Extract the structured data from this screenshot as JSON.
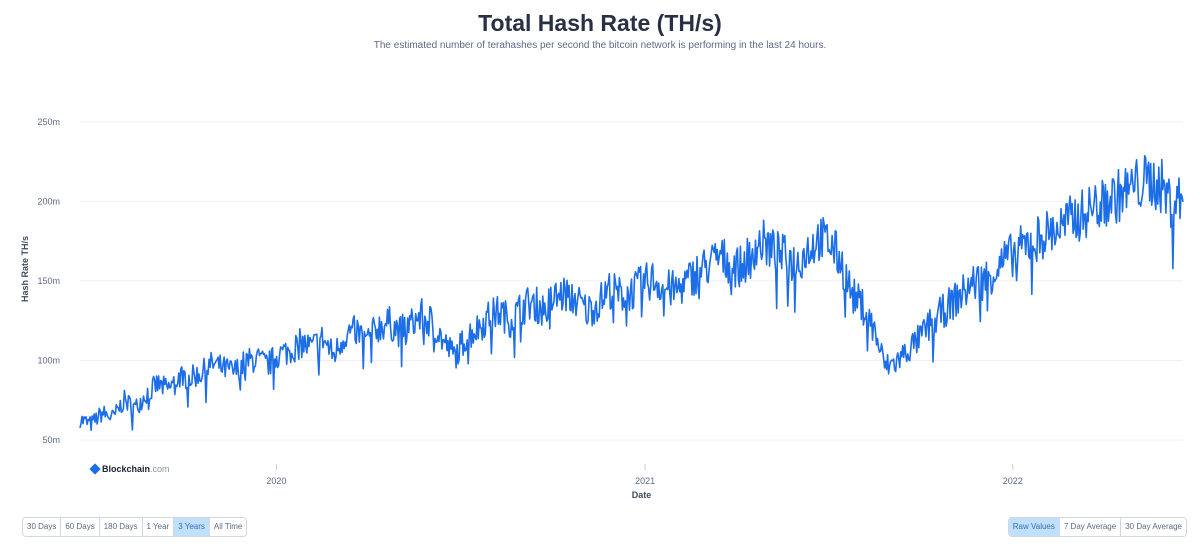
{
  "header": {
    "title": "Total Hash Rate (TH/s)",
    "subtitle": "The estimated number of terahashes per second the bitcoin network is performing in the last 24 hours."
  },
  "watermark": {
    "brand": "Blockchain",
    "suffix": ".com"
  },
  "range_buttons": [
    {
      "label": "30 Days",
      "active": false
    },
    {
      "label": "60 Days",
      "active": false
    },
    {
      "label": "180 Days",
      "active": false
    },
    {
      "label": "1 Year",
      "active": false
    },
    {
      "label": "3 Years",
      "active": true
    },
    {
      "label": "All Time",
      "active": false
    }
  ],
  "mode_buttons": [
    {
      "label": "Raw Values",
      "active": true
    },
    {
      "label": "7 Day Average",
      "active": false
    },
    {
      "label": "30 Day Average",
      "active": false
    }
  ],
  "colors": {
    "line": "#1c6ee8",
    "grid": "#eef0f4",
    "active_button": "#bfe0ff"
  },
  "chart_data": {
    "type": "line",
    "title": "Total Hash Rate (TH/s)",
    "xlabel": "Date",
    "ylabel": "Hash Rate TH/s",
    "x_start": "2019-06-20",
    "x_end": "2022-06-19",
    "ylim": [
      40,
      275
    ],
    "yticks": [
      50,
      100,
      150,
      200,
      250
    ],
    "ytick_labels": [
      "50m",
      "100m",
      "150m",
      "200m",
      "250m"
    ],
    "xticks": [
      "2020-01-01",
      "2021-01-01",
      "2022-01-01"
    ],
    "xtick_labels": [
      "2020",
      "2021",
      "2022"
    ],
    "grid": true,
    "series": [
      {
        "values": [
          [
            0.0,
            63
          ],
          [
            0.01,
            60
          ],
          [
            0.02,
            67
          ],
          [
            0.03,
            64
          ],
          [
            0.04,
            75
          ],
          [
            0.05,
            70
          ],
          [
            0.06,
            79
          ],
          [
            0.07,
            85
          ],
          [
            0.08,
            82
          ],
          [
            0.09,
            90
          ],
          [
            0.1,
            89
          ],
          [
            0.11,
            92
          ],
          [
            0.12,
            98
          ],
          [
            0.13,
            95
          ],
          [
            0.14,
            93
          ],
          [
            0.15,
            99
          ],
          [
            0.16,
            101
          ],
          [
            0.17,
            97
          ],
          [
            0.18,
            104
          ],
          [
            0.19,
            106
          ],
          [
            0.2,
            111
          ],
          [
            0.21,
            108
          ],
          [
            0.22,
            114
          ],
          [
            0.23,
            103
          ],
          [
            0.24,
            116
          ],
          [
            0.25,
            119
          ],
          [
            0.26,
            112
          ],
          [
            0.27,
            121
          ],
          [
            0.28,
            124
          ],
          [
            0.29,
            118
          ],
          [
            0.3,
            123
          ],
          [
            0.31,
            128
          ],
          [
            0.32,
            124
          ],
          [
            0.33,
            111
          ],
          [
            0.34,
            103
          ],
          [
            0.35,
            115
          ],
          [
            0.36,
            120
          ],
          [
            0.37,
            127
          ],
          [
            0.38,
            131
          ],
          [
            0.39,
            125
          ],
          [
            0.4,
            133
          ],
          [
            0.41,
            137
          ],
          [
            0.42,
            132
          ],
          [
            0.43,
            139
          ],
          [
            0.44,
            142
          ],
          [
            0.45,
            138
          ],
          [
            0.46,
            131
          ],
          [
            0.47,
            136
          ],
          [
            0.48,
            145
          ],
          [
            0.49,
            141
          ],
          [
            0.5,
            143
          ],
          [
            0.51,
            148
          ],
          [
            0.52,
            151
          ],
          [
            0.53,
            146
          ],
          [
            0.54,
            144
          ],
          [
            0.55,
            149
          ],
          [
            0.56,
            156
          ],
          [
            0.57,
            160
          ],
          [
            0.58,
            165
          ],
          [
            0.59,
            161
          ],
          [
            0.6,
            158
          ],
          [
            0.61,
            171
          ],
          [
            0.62,
            174
          ],
          [
            0.63,
            168
          ],
          [
            0.64,
            165
          ],
          [
            0.65,
            161
          ],
          [
            0.66,
            170
          ],
          [
            0.67,
            177
          ],
          [
            0.68,
            174
          ],
          [
            0.69,
            162
          ],
          [
            0.7,
            141
          ],
          [
            0.71,
            134
          ],
          [
            0.72,
            119
          ],
          [
            0.73,
            96
          ],
          [
            0.74,
            99
          ],
          [
            0.75,
            106
          ],
          [
            0.76,
            113
          ],
          [
            0.77,
            122
          ],
          [
            0.78,
            129
          ],
          [
            0.79,
            136
          ],
          [
            0.8,
            142
          ],
          [
            0.81,
            149
          ],
          [
            0.82,
            151
          ],
          [
            0.83,
            157
          ],
          [
            0.84,
            164
          ],
          [
            0.85,
            169
          ],
          [
            0.86,
            174
          ],
          [
            0.87,
            178
          ],
          [
            0.88,
            181
          ],
          [
            0.89,
            184
          ],
          [
            0.9,
            189
          ],
          [
            0.91,
            192
          ],
          [
            0.92,
            197
          ],
          [
            0.93,
            200
          ],
          [
            0.94,
            203
          ],
          [
            0.95,
            207
          ],
          [
            0.96,
            211
          ],
          [
            0.97,
            213
          ],
          [
            0.98,
            210
          ],
          [
            0.99,
            198
          ],
          [
            1.0,
            202
          ]
        ]
      }
    ]
  }
}
